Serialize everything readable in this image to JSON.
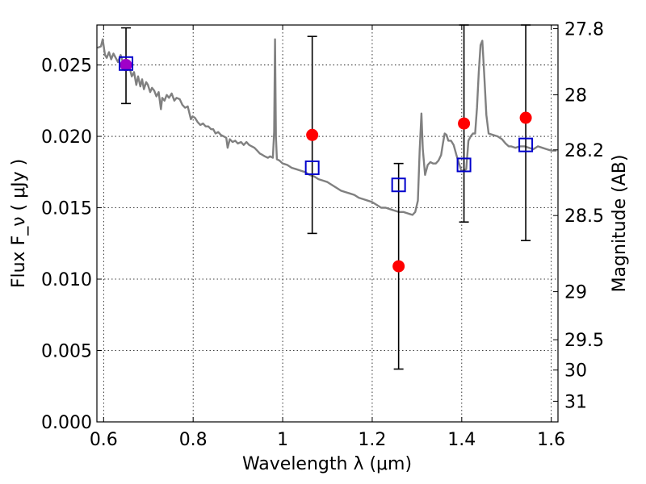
{
  "chart_data": {
    "type": "scatter",
    "xlabel": "Wavelength  λ (μm)",
    "ylabel": "Flux  F_ν  ( μJy )",
    "y2label": "Magnitude (AB)",
    "xlim": [
      0.585,
      1.615
    ],
    "ylim": [
      0.0,
      0.0278
    ],
    "grid": true,
    "x_ticks": [
      {
        "value": 0.6,
        "label": "0.6"
      },
      {
        "value": 0.8,
        "label": "0.8"
      },
      {
        "value": 1.0,
        "label": "1"
      },
      {
        "value": 1.2,
        "label": "1.2"
      },
      {
        "value": 1.4,
        "label": "1.4"
      },
      {
        "value": 1.6,
        "label": "1.6"
      }
    ],
    "y_ticks": [
      {
        "value": 0.0,
        "label": "0.000"
      },
      {
        "value": 0.005,
        "label": "0.005"
      },
      {
        "value": 0.01,
        "label": "0.010"
      },
      {
        "value": 0.015,
        "label": "0.015"
      },
      {
        "value": 0.02,
        "label": "0.020"
      },
      {
        "value": 0.025,
        "label": "0.025"
      }
    ],
    "y2_ticks": [
      {
        "value": 27.8,
        "label": "27.8"
      },
      {
        "value": 28.0,
        "label": "28"
      },
      {
        "value": 28.2,
        "label": "28.2"
      },
      {
        "value": 28.5,
        "label": "28.5"
      },
      {
        "value": 29.0,
        "label": "29"
      },
      {
        "value": 29.5,
        "label": "29.5"
      },
      {
        "value": 30.0,
        "label": "30"
      },
      {
        "value": 31.0,
        "label": "31"
      }
    ],
    "series": [
      {
        "kind": "model-spectrum",
        "color": "#808080",
        "points": [
          [
            0.586,
            0.0262
          ],
          [
            0.594,
            0.0263
          ],
          [
            0.598,
            0.0268
          ],
          [
            0.603,
            0.0257
          ],
          [
            0.607,
            0.0255
          ],
          [
            0.612,
            0.0259
          ],
          [
            0.617,
            0.0254
          ],
          [
            0.622,
            0.0258
          ],
          [
            0.627,
            0.0255
          ],
          [
            0.632,
            0.0252
          ],
          [
            0.638,
            0.0257
          ],
          [
            0.643,
            0.0252
          ],
          [
            0.648,
            0.0249
          ],
          [
            0.653,
            0.025
          ],
          [
            0.658,
            0.0248
          ],
          [
            0.663,
            0.0242
          ],
          [
            0.668,
            0.0245
          ],
          [
            0.673,
            0.0236
          ],
          [
            0.677,
            0.0242
          ],
          [
            0.682,
            0.0235
          ],
          [
            0.686,
            0.024
          ],
          [
            0.69,
            0.0233
          ],
          [
            0.695,
            0.0238
          ],
          [
            0.699,
            0.0236
          ],
          [
            0.704,
            0.0231
          ],
          [
            0.708,
            0.0234
          ],
          [
            0.713,
            0.0232
          ],
          [
            0.718,
            0.0228
          ],
          [
            0.723,
            0.0231
          ],
          [
            0.728,
            0.0219
          ],
          [
            0.731,
            0.0227
          ],
          [
            0.736,
            0.0225
          ],
          [
            0.741,
            0.0229
          ],
          [
            0.746,
            0.0227
          ],
          [
            0.752,
            0.023
          ],
          [
            0.758,
            0.0225
          ],
          [
            0.763,
            0.0227
          ],
          [
            0.77,
            0.0226
          ],
          [
            0.776,
            0.0222
          ],
          [
            0.782,
            0.022
          ],
          [
            0.788,
            0.0221
          ],
          [
            0.795,
            0.0212
          ],
          [
            0.799,
            0.0214
          ],
          [
            0.804,
            0.0213
          ],
          [
            0.81,
            0.021
          ],
          [
            0.816,
            0.0208
          ],
          [
            0.822,
            0.0209
          ],
          [
            0.828,
            0.0207
          ],
          [
            0.834,
            0.0207
          ],
          [
            0.84,
            0.0205
          ],
          [
            0.845,
            0.0205
          ],
          [
            0.85,
            0.0202
          ],
          [
            0.856,
            0.0203
          ],
          [
            0.862,
            0.0201
          ],
          [
            0.868,
            0.02
          ],
          [
            0.874,
            0.0199
          ],
          [
            0.877,
            0.0192
          ],
          [
            0.882,
            0.0198
          ],
          [
            0.888,
            0.0196
          ],
          [
            0.894,
            0.0197
          ],
          [
            0.9,
            0.0195
          ],
          [
            0.907,
            0.0196
          ],
          [
            0.913,
            0.0194
          ],
          [
            0.919,
            0.0196
          ],
          [
            0.925,
            0.0194
          ],
          [
            0.931,
            0.0193
          ],
          [
            0.937,
            0.0192
          ],
          [
            0.943,
            0.019
          ],
          [
            0.949,
            0.0188
          ],
          [
            0.955,
            0.0187
          ],
          [
            0.96,
            0.0186
          ],
          [
            0.967,
            0.0185
          ],
          [
            0.972,
            0.0186
          ],
          [
            0.978,
            0.0185
          ],
          [
            0.981,
            0.0203
          ],
          [
            0.983,
            0.0268
          ],
          [
            0.985,
            0.02
          ],
          [
            0.987,
            0.0184
          ],
          [
            0.993,
            0.0183
          ],
          [
            1.0,
            0.0181
          ],
          [
            1.01,
            0.018
          ],
          [
            1.02,
            0.0178
          ],
          [
            1.03,
            0.0177
          ],
          [
            1.04,
            0.0176
          ],
          [
            1.05,
            0.0175
          ],
          [
            1.06,
            0.0173
          ],
          [
            1.07,
            0.0172
          ],
          [
            1.08,
            0.017
          ],
          [
            1.09,
            0.0169
          ],
          [
            1.1,
            0.0168
          ],
          [
            1.11,
            0.0166
          ],
          [
            1.12,
            0.0164
          ],
          [
            1.13,
            0.0162
          ],
          [
            1.14,
            0.0161
          ],
          [
            1.15,
            0.016
          ],
          [
            1.16,
            0.0159
          ],
          [
            1.17,
            0.0157
          ],
          [
            1.18,
            0.0156
          ],
          [
            1.19,
            0.0155
          ],
          [
            1.2,
            0.0154
          ],
          [
            1.21,
            0.0152
          ],
          [
            1.22,
            0.015
          ],
          [
            1.23,
            0.015
          ],
          [
            1.24,
            0.0149
          ],
          [
            1.25,
            0.0148
          ],
          [
            1.26,
            0.0147
          ],
          [
            1.27,
            0.0147
          ],
          [
            1.28,
            0.0146
          ],
          [
            1.29,
            0.0145
          ],
          [
            1.296,
            0.0147
          ],
          [
            1.302,
            0.0155
          ],
          [
            1.306,
            0.019
          ],
          [
            1.31,
            0.0216
          ],
          [
            1.313,
            0.0191
          ],
          [
            1.318,
            0.0173
          ],
          [
            1.324,
            0.018
          ],
          [
            1.33,
            0.0182
          ],
          [
            1.336,
            0.0181
          ],
          [
            1.342,
            0.0181
          ],
          [
            1.348,
            0.0183
          ],
          [
            1.354,
            0.0187
          ],
          [
            1.358,
            0.0195
          ],
          [
            1.362,
            0.0202
          ],
          [
            1.366,
            0.0201
          ],
          [
            1.37,
            0.0197
          ],
          [
            1.376,
            0.0197
          ],
          [
            1.382,
            0.0194
          ],
          [
            1.388,
            0.0187
          ],
          [
            1.394,
            0.0181
          ],
          [
            1.399,
            0.0176
          ],
          [
            1.404,
            0.0176
          ],
          [
            1.41,
            0.0177
          ],
          [
            1.415,
            0.0197
          ],
          [
            1.42,
            0.02
          ],
          [
            1.425,
            0.0202
          ],
          [
            1.43,
            0.0202
          ],
          [
            1.434,
            0.022
          ],
          [
            1.438,
            0.0245
          ],
          [
            1.442,
            0.0264
          ],
          [
            1.446,
            0.0267
          ],
          [
            1.45,
            0.0245
          ],
          [
            1.455,
            0.0215
          ],
          [
            1.46,
            0.0202
          ],
          [
            1.47,
            0.0201
          ],
          [
            1.48,
            0.02
          ],
          [
            1.49,
            0.0198
          ],
          [
            1.498,
            0.0195
          ],
          [
            1.505,
            0.0193
          ],
          [
            1.51,
            0.0193
          ],
          [
            1.52,
            0.0192
          ],
          [
            1.53,
            0.0193
          ],
          [
            1.54,
            0.0193
          ],
          [
            1.55,
            0.0192
          ],
          [
            1.56,
            0.0191
          ],
          [
            1.57,
            0.0193
          ],
          [
            1.58,
            0.0192
          ],
          [
            1.59,
            0.0191
          ],
          [
            1.6,
            0.019
          ],
          [
            1.612,
            0.019
          ]
        ]
      },
      {
        "kind": "observed-flux",
        "marker": "circle",
        "color": "#ff0000",
        "points": [
          {
            "x": 0.65,
            "y": 0.025,
            "yerr_low": 0.0223,
            "yerr_high": 0.0276,
            "color": "#a000c8"
          },
          {
            "x": 1.066,
            "y": 0.0201,
            "yerr_low": 0.0132,
            "yerr_high": 0.027
          },
          {
            "x": 1.259,
            "y": 0.0109,
            "yerr_low": 0.0037,
            "yerr_high": 0.0181
          },
          {
            "x": 1.405,
            "y": 0.0209,
            "yerr_low": 0.014,
            "yerr_high": 0.0278
          },
          {
            "x": 1.543,
            "y": 0.0213,
            "yerr_low": 0.0127,
            "yerr_high": 0.028
          }
        ]
      },
      {
        "kind": "model-flux",
        "marker": "square-open",
        "color": "#0000cc",
        "points": [
          {
            "x": 0.65,
            "y": 0.0251
          },
          {
            "x": 1.066,
            "y": 0.0178
          },
          {
            "x": 1.259,
            "y": 0.0166
          },
          {
            "x": 1.405,
            "y": 0.018
          },
          {
            "x": 1.543,
            "y": 0.0194
          }
        ]
      }
    ]
  }
}
